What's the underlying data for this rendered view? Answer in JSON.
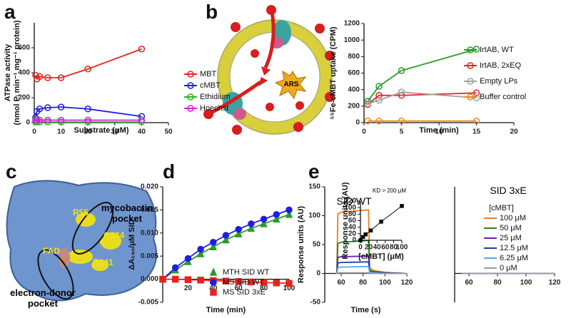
{
  "panel_labels": [
    "a",
    "b",
    "c",
    "d",
    "e"
  ],
  "diagram_b": {
    "label": "ARS"
  },
  "structure_c": {
    "residues": [
      "R55",
      "Q234",
      "R241",
      "FAD"
    ],
    "mycobactin_pocket": [
      "mycobactin",
      "pocket"
    ],
    "donor_pocket": [
      "electron-donor",
      "pocket"
    ]
  },
  "chart_data": [
    {
      "type": "line",
      "xlabel": "Substrate (μM)",
      "ylabel": [
        "ATPase activity",
        "(nmol Pᵢ min⁻¹ mg⁻¹ protein)"
      ],
      "x": [
        0.5,
        1,
        2,
        5,
        10,
        20,
        40
      ],
      "xlim": [
        0,
        50
      ],
      "xticks": [
        0,
        10,
        20,
        30,
        40,
        50
      ],
      "ylim": [
        0,
        800
      ],
      "yticks": [
        0,
        200,
        400,
        600
      ],
      "marker": "open-circle",
      "series": [
        {
          "name": "MBT",
          "color": "#e8231f",
          "values": [
            380,
            350,
            370,
            360,
            360,
            430,
            590
          ]
        },
        {
          "name": "cMBT",
          "color": "#1f1fe0",
          "values": [
            40,
            90,
            110,
            120,
            125,
            110,
            50
          ]
        },
        {
          "name": "Ethidium",
          "color": "#22b822",
          "values": [
            5,
            5,
            5,
            5,
            5,
            5,
            5
          ]
        },
        {
          "name": "Hoechst",
          "color": "#d020d0",
          "values": [
            20,
            20,
            20,
            20,
            20,
            20,
            20
          ]
        }
      ]
    },
    {
      "type": "line",
      "xlabel": "Time (min)",
      "ylabel": "⁵⁵Fe-cMBT uptake (CPM)",
      "x": [
        0.5,
        2,
        5,
        15
      ],
      "xlim": [
        0,
        20
      ],
      "xticks": [
        0,
        5,
        10,
        15,
        20
      ],
      "ylim": [
        0,
        1200
      ],
      "yticks": [
        0,
        200,
        400,
        600,
        800,
        1000,
        1200
      ],
      "marker": "open-circle",
      "series": [
        {
          "name": "IrtAB, WT",
          "color": "#2a9a2a",
          "values": [
            260,
            440,
            630,
            890
          ]
        },
        {
          "name": "IrtAB, 2xEQ",
          "color": "#e8231f",
          "values": [
            220,
            330,
            330,
            360
          ]
        },
        {
          "name": "Empty LPs",
          "color": "#a0a0a0",
          "values": [
            230,
            270,
            370,
            300
          ]
        },
        {
          "name": "Buffer control",
          "color": "#f08a1c",
          "values": [
            20,
            20,
            20,
            20
          ]
        }
      ]
    },
    {
      "type": "line",
      "xlabel": "Time (min)",
      "ylabel": "ΔA₅₉₀/μM SID",
      "x": [
        0,
        10,
        20,
        30,
        40,
        50,
        60,
        70,
        80,
        90,
        100
      ],
      "xlim": [
        0,
        100
      ],
      "xticks": [
        20,
        40,
        60,
        80,
        100
      ],
      "ylim": [
        -0.005,
        0.02
      ],
      "yticks": [
        {
          "value": -0.005,
          "label": "-0.005"
        },
        {
          "value": 0,
          "label": "0.000"
        },
        {
          "value": 0.005,
          "label": "0.005"
        },
        {
          "value": 0.01,
          "label": "0.010"
        },
        {
          "value": 0.015,
          "label": "0.015"
        },
        {
          "value": 0.02,
          "label": "0.020"
        }
      ],
      "series": [
        {
          "name": "MTH SID WT",
          "color": "#2a9a2a",
          "marker": "triangle",
          "values": [
            0,
            0.002,
            0.0038,
            0.0055,
            0.007,
            0.0085,
            0.0098,
            0.011,
            0.012,
            0.013,
            0.014
          ]
        },
        {
          "name": "MS SID WT",
          "color": "#1f1fe0",
          "marker": "circle",
          "values": [
            0,
            0.0025,
            0.0045,
            0.0065,
            0.008,
            0.0095,
            0.0108,
            0.012,
            0.013,
            0.014,
            0.015
          ]
        },
        {
          "name": "MS SID 3xE",
          "color": "#e8231f",
          "marker": "square",
          "values": [
            0,
            0,
            -0.0001,
            -0.0002,
            -0.0003,
            -0.0004,
            -0.0005,
            -0.0006,
            -0.0007,
            -0.0008,
            -0.0009
          ]
        }
      ]
    },
    {
      "type": "line",
      "title": "SID WT",
      "xlabel": "Time (s)",
      "ylabel": "Response units (AU)",
      "xlim": [
        45,
        120
      ],
      "xticks": [
        60,
        80,
        100,
        120
      ],
      "ylim": [
        -50,
        150
      ],
      "yticks": [
        -50,
        0,
        50,
        100,
        150
      ],
      "series": [
        {
          "color": "#f07a1c",
          "x": [
            55,
            56,
            57,
            60,
            84,
            85,
            86,
            90,
            100,
            120
          ],
          "values": [
            0,
            0,
            103,
            106,
            110,
            110,
            10,
            5,
            2,
            0
          ]
        },
        {
          "color": "#1f8a1f",
          "x": [
            55,
            56,
            57,
            60,
            84,
            85,
            86,
            90,
            100,
            120
          ],
          "values": [
            0,
            0,
            52,
            54,
            57,
            57,
            6,
            3,
            1,
            0
          ]
        },
        {
          "color": "#6a1fb0",
          "x": [
            55,
            56,
            57,
            60,
            84,
            85,
            86,
            90,
            100,
            120
          ],
          "values": [
            0,
            0,
            28,
            29,
            30,
            30,
            4,
            2,
            1,
            0
          ]
        },
        {
          "color": "#1f3fb0",
          "x": [
            55,
            56,
            57,
            60,
            84,
            85,
            86,
            90,
            100,
            120
          ],
          "values": [
            0,
            0,
            18,
            19,
            20,
            20,
            3,
            2,
            1,
            0
          ]
        },
        {
          "color": "#4ea8e8",
          "x": [
            55,
            56,
            57,
            60,
            84,
            85,
            86,
            90,
            100,
            120
          ],
          "values": [
            0,
            0,
            10,
            11,
            12,
            12,
            2,
            1,
            0,
            0
          ]
        },
        {
          "color": "#9a9a9a",
          "x": [
            55,
            56,
            57,
            60,
            84,
            85,
            86,
            90,
            100,
            120
          ],
          "values": [
            0,
            0,
            1,
            1,
            1,
            1,
            0,
            0,
            0,
            0
          ]
        }
      ]
    },
    {
      "type": "line",
      "xlabel": "[cMBT] (μM)",
      "ylabel": "Response units (AU)",
      "annotation": "KD > 200 μM",
      "x": [
        0,
        6.25,
        12.5,
        25,
        50,
        100
      ],
      "xlim": [
        0,
        100
      ],
      "xticks": [
        0,
        20,
        40,
        60,
        80,
        100
      ],
      "ylim": [
        0,
        120
      ],
      "yticks": [
        0,
        20,
        40,
        60,
        80,
        100,
        120
      ],
      "marker": "square",
      "series": [
        {
          "color": "#000000",
          "values": [
            0,
            10,
            18,
            30,
            57,
            105
          ]
        }
      ]
    },
    {
      "type": "line",
      "title": "SID 3xE",
      "legend_title": "[cMBT]",
      "xlim": [
        50,
        120
      ],
      "xticks": [
        60,
        80,
        100,
        120
      ],
      "ylim": [
        -50,
        150
      ],
      "series": [
        {
          "name": "100 μM",
          "color": "#f07a1c",
          "x": [
            55,
            120
          ],
          "values": [
            0,
            0
          ]
        },
        {
          "name": "50 μM",
          "color": "#1f8a1f",
          "x": [
            55,
            120
          ],
          "values": [
            0,
            0
          ]
        },
        {
          "name": "25 μM",
          "color": "#6a1fb0",
          "x": [
            55,
            120
          ],
          "values": [
            0,
            0
          ]
        },
        {
          "name": "12.5 μM",
          "color": "#1f3fb0",
          "x": [
            55,
            120
          ],
          "values": [
            0,
            0
          ]
        },
        {
          "name": "6.25 μM",
          "color": "#4ea8e8",
          "x": [
            55,
            120
          ],
          "values": [
            0,
            0
          ]
        },
        {
          "name": "0 μM",
          "color": "#9a9a9a",
          "x": [
            55,
            120
          ],
          "values": [
            0,
            0
          ]
        }
      ]
    }
  ]
}
